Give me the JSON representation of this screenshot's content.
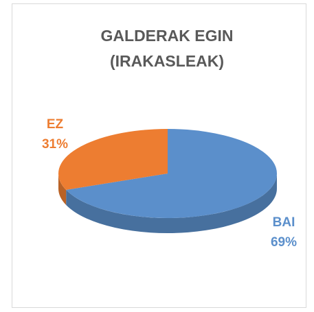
{
  "chart_data": {
    "type": "pie",
    "title": "GALDERAK EGIN (IRAKASLEAK)",
    "categories": [
      "BAI",
      "EZ"
    ],
    "values": [
      69,
      31
    ],
    "value_labels": [
      "69%",
      "31%"
    ],
    "colors": [
      "#5b8fcb",
      "#ed7d31"
    ]
  }
}
